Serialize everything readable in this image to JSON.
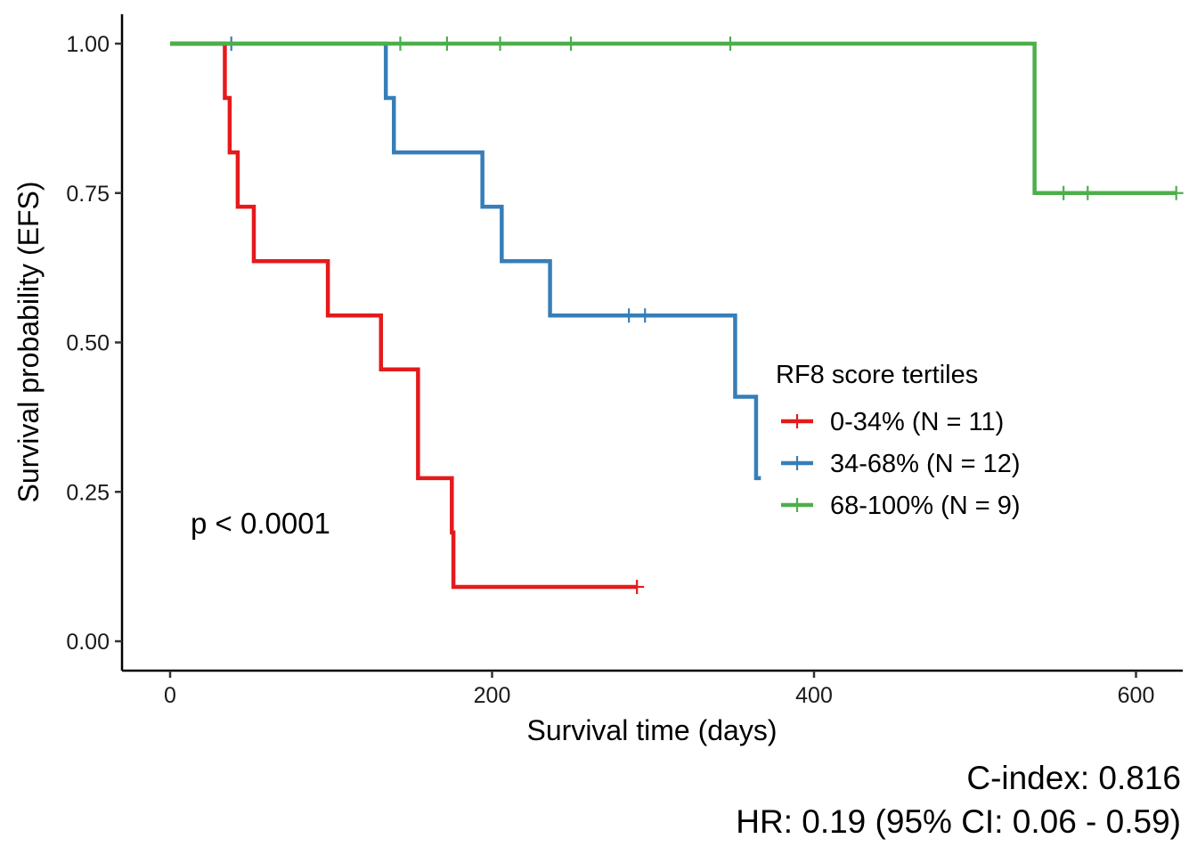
{
  "chart_data": {
    "type": "line",
    "subtype": "kaplan-meier step",
    "title": "",
    "xlabel": "Survival time (days)",
    "ylabel": "Survival probability (EFS)",
    "xlim": [
      -15,
      630
    ],
    "ylim": [
      -0.05,
      1.05
    ],
    "x_ticks": [
      0,
      200,
      400,
      600
    ],
    "y_ticks": [
      0.0,
      0.25,
      0.5,
      0.75,
      1.0
    ],
    "y_tick_labels": [
      "0.00",
      "0.25",
      "0.50",
      "0.75",
      "1.00"
    ],
    "grid": false,
    "legend": {
      "title": "RF8 score tertiles",
      "placement": "right-center",
      "entries": [
        "0-34% (N = 11)",
        "34-68% (N = 12)",
        "68-100% (N = 9)"
      ]
    },
    "series": [
      {
        "name": "0-34% (N = 11)",
        "color": "#e41a1c",
        "steps": [
          [
            0,
            1.0
          ],
          [
            34,
            0.909
          ],
          [
            37,
            0.818
          ],
          [
            42,
            0.727
          ],
          [
            52,
            0.636
          ],
          [
            98,
            0.545
          ],
          [
            131,
            0.455
          ],
          [
            154,
            0.273
          ],
          [
            175,
            0.182
          ],
          [
            176,
            0.091
          ],
          [
            290,
            0.091
          ]
        ],
        "censored": [
          [
            290,
            0.091
          ]
        ]
      },
      {
        "name": "34-68% (N = 12)",
        "color": "#377eb8",
        "steps": [
          [
            0,
            1.0
          ],
          [
            134,
            0.909
          ],
          [
            139,
            0.818
          ],
          [
            194,
            0.727
          ],
          [
            206,
            0.636
          ],
          [
            236,
            0.545
          ],
          [
            351,
            0.409
          ],
          [
            364,
            0.273
          ],
          [
            367,
            0.273
          ]
        ],
        "censored": [
          [
            38,
            1.0
          ],
          [
            285,
            0.545
          ],
          [
            295,
            0.545
          ]
        ]
      },
      {
        "name": "68-100% (N = 9)",
        "color": "#4daf4a",
        "steps": [
          [
            0,
            1.0
          ],
          [
            537,
            0.75
          ],
          [
            625,
            0.75
          ]
        ],
        "censored": [
          [
            143,
            1.0
          ],
          [
            172,
            1.0
          ],
          [
            205,
            1.0
          ],
          [
            249,
            1.0
          ],
          [
            348,
            1.0
          ],
          [
            555,
            0.75
          ],
          [
            570,
            0.75
          ],
          [
            625,
            0.75
          ]
        ]
      }
    ],
    "annotations": {
      "pvalue": "p < 0.0001",
      "cindex": "C-index: 0.816",
      "hr": "HR: 0.19 (95% CI: 0.06 - 0.59)"
    }
  }
}
